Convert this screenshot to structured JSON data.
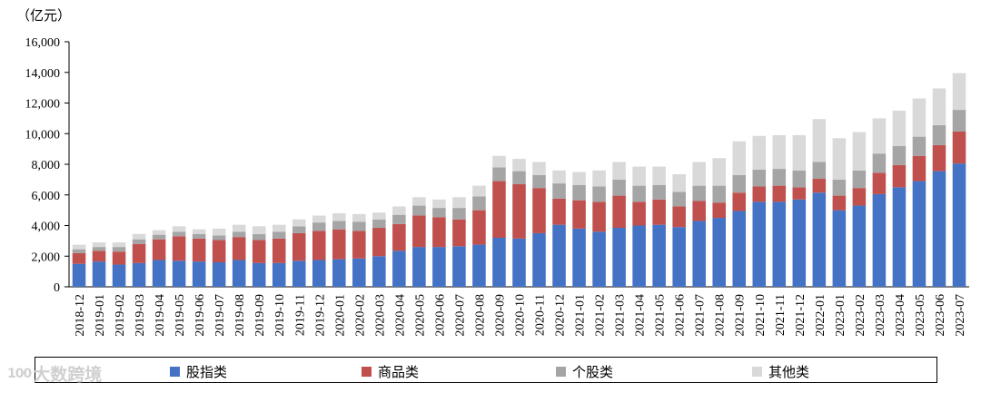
{
  "chart_data": {
    "type": "bar",
    "stacked": true,
    "unit_label": "（亿元）",
    "ylim": [
      0,
      16000
    ],
    "yticks": [
      "0",
      "2,000",
      "4,000",
      "6,000",
      "8,000",
      "10,000",
      "12,000",
      "14,000",
      "16,000"
    ],
    "categories": [
      "2018-12",
      "2019-01",
      "2019-02",
      "2019-03",
      "2019-04",
      "2019-05",
      "2019-06",
      "2019-07",
      "2019-08",
      "2019-09",
      "2019-10",
      "2019-11",
      "2019-12",
      "2020-01",
      "2020-02",
      "2020-03",
      "2020-04",
      "2020-05",
      "2020-06",
      "2020-07",
      "2020-08",
      "2020-09",
      "2020-10",
      "2020-11",
      "2020-12",
      "2021-01",
      "2021-02",
      "2021-03",
      "2021-04",
      "2021-05",
      "2021-06",
      "2021-07",
      "2021-08",
      "2021-09",
      "2021-10",
      "2021-11",
      "2021-12",
      "2022-01",
      "2023-01",
      "2023-02",
      "2023-03",
      "2023-04",
      "2023-05",
      "2023-06",
      "2023-07"
    ],
    "series": [
      {
        "name": "股指类",
        "color": "#4472C4",
        "values": [
          1500,
          1650,
          1450,
          1550,
          1750,
          1700,
          1650,
          1600,
          1750,
          1550,
          1550,
          1700,
          1750,
          1800,
          1850,
          2000,
          2350,
          2600,
          2600,
          2650,
          2750,
          3200,
          3150,
          3500,
          4050,
          3800,
          3600,
          3850,
          4000,
          4050,
          3900,
          4300,
          4500,
          4950,
          5550,
          5550,
          5700,
          6150,
          5000,
          5300,
          6050,
          6500,
          6900,
          7550,
          8050
        ]
      },
      {
        "name": "商品类",
        "color": "#C0504D",
        "values": [
          700,
          700,
          850,
          1250,
          1350,
          1600,
          1500,
          1450,
          1500,
          1500,
          1600,
          1800,
          1900,
          1950,
          1800,
          1850,
          1750,
          2050,
          1950,
          1750,
          2250,
          3700,
          3550,
          2950,
          1700,
          1850,
          1950,
          2100,
          1550,
          1650,
          1350,
          1300,
          1000,
          1200,
          1000,
          1050,
          800,
          900,
          950,
          1150,
          1400,
          1450,
          1650,
          1700,
          2100
        ]
      },
      {
        "name": "个股类",
        "color": "#A5A5A5",
        "values": [
          250,
          250,
          300,
          300,
          300,
          300,
          300,
          300,
          350,
          400,
          450,
          450,
          550,
          550,
          600,
          550,
          600,
          650,
          600,
          750,
          900,
          900,
          850,
          850,
          1000,
          1000,
          1000,
          1050,
          1050,
          950,
          950,
          1000,
          1100,
          1150,
          1100,
          1100,
          1100,
          1100,
          1050,
          1150,
          1250,
          1250,
          1250,
          1300,
          1400
        ]
      },
      {
        "name": "其他类",
        "color": "#D9D9D9",
        "values": [
          300,
          300,
          300,
          350,
          300,
          350,
          300,
          450,
          450,
          500,
          450,
          450,
          450,
          500,
          500,
          450,
          550,
          550,
          550,
          700,
          700,
          750,
          800,
          850,
          850,
          850,
          1050,
          1150,
          1250,
          1200,
          1150,
          1550,
          1800,
          2200,
          2200,
          2200,
          2300,
          2800,
          2700,
          2500,
          2300,
          2300,
          2500,
          2400,
          2400
        ]
      }
    ]
  },
  "watermark": {
    "icon_text": "100",
    "text": "大数跨境"
  }
}
